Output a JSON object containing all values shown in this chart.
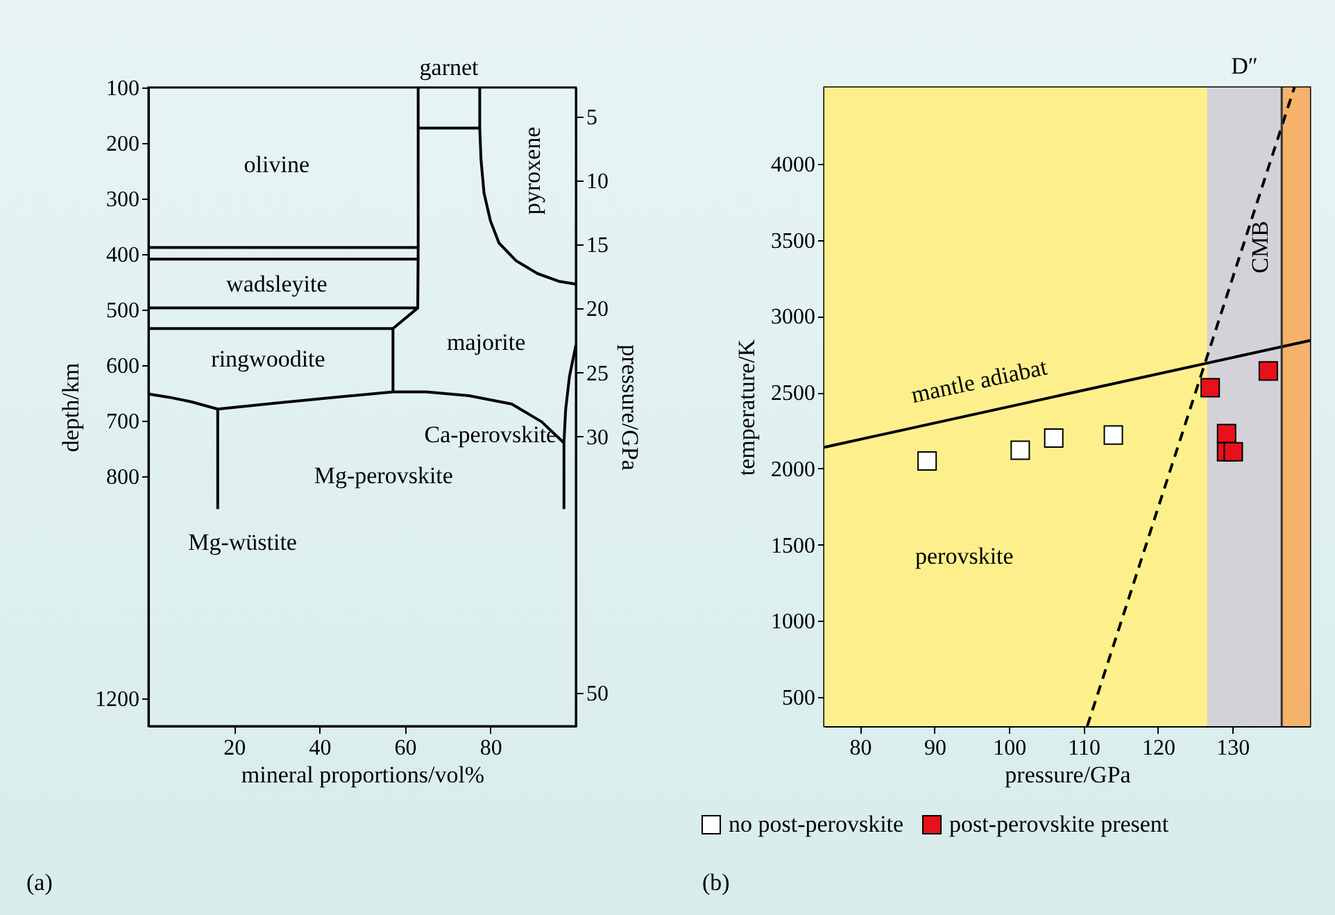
{
  "chart_data": [
    {
      "type": "line",
      "xlabel": "mineral proportions/vol%",
      "ylabel": "depth/km",
      "y2label": "pressure/GPa",
      "xlim": [
        0,
        100
      ],
      "xticks": [
        20,
        40,
        60,
        80
      ],
      "ylim": [
        1250,
        100
      ],
      "yticks": [
        100,
        200,
        300,
        400,
        500,
        600,
        700,
        800,
        1200
      ],
      "y2lim": [
        52.6,
        2.75
      ],
      "y2ticks": [
        5,
        10,
        15,
        20,
        25,
        30,
        50
      ],
      "grid": false,
      "series": [
        {
          "color": "#000000",
          "x": [
            0,
            63.1
          ],
          "values": [
            388,
            388
          ]
        },
        {
          "color": "#000000",
          "x": [
            0,
            63.1
          ],
          "values": [
            409,
            409
          ]
        },
        {
          "color": "#000000",
          "x": [
            0,
            63.1
          ],
          "values": [
            497,
            497
          ]
        },
        {
          "color": "#000000",
          "x": [
            0,
            57.2
          ],
          "values": [
            534,
            534
          ]
        },
        {
          "color": "#000000",
          "x": [
            63.1,
            63.1,
            63,
            57.2,
            57.2
          ],
          "values": [
            100,
            388,
            497,
            534,
            648
          ]
        },
        {
          "color": "#000000",
          "x": [
            77.5,
            77.5,
            63.1
          ],
          "values": [
            100,
            173,
            173
          ]
        },
        {
          "color": "#000000",
          "x": [
            77.5,
            77.8,
            78.5,
            80,
            82,
            86,
            91,
            96,
            100
          ],
          "values": [
            173,
            230,
            290,
            340,
            380,
            412,
            435,
            449,
            454
          ]
        },
        {
          "color": "#000000",
          "x": [
            0,
            5,
            10,
            16.2,
            30,
            45,
            57.2,
            65,
            75,
            85,
            92,
            97.2
          ],
          "values": [
            652,
            658,
            666,
            679,
            668,
            657,
            648,
            648,
            655,
            670,
            702,
            740
          ]
        },
        {
          "color": "#000000",
          "x": [
            16.2,
            16.2
          ],
          "values": [
            679,
            859
          ]
        },
        {
          "color": "#000000",
          "x": [
            100,
            98.5,
            97.6,
            97.2,
            97.2
          ],
          "values": [
            564,
            620,
            680,
            740,
            859
          ]
        }
      ],
      "annotations": [
        "olivine",
        "wadsleyite",
        "ringwoodite",
        "majorite",
        "pyroxene",
        "garnet",
        "Ca-perovskite",
        "Mg-perovskite",
        "Mg-wüstite",
        "(a)"
      ]
    },
    {
      "type": "scatter",
      "xlabel": "pressure/GPa",
      "ylabel": "temperature/K",
      "xlim": [
        75.2,
        140.4
      ],
      "xticks": [
        80,
        90,
        100,
        110,
        120,
        130
      ],
      "ylim": [
        310,
        4500
      ],
      "yticks": [
        500,
        1000,
        1500,
        2000,
        2500,
        3000,
        3500,
        4000
      ],
      "grid": false,
      "legend": "bottom",
      "bands": [
        {
          "axis": "x",
          "from": 75.2,
          "to": 126.6,
          "color": "#fdf08c"
        },
        {
          "axis": "x",
          "from": 126.6,
          "to": 136.6,
          "color": "#d2d2d8",
          "label": "D″"
        },
        {
          "axis": "x",
          "from": 136.6,
          "to": 140.4,
          "color": "#f5b26b"
        }
      ],
      "ref_lines": [
        {
          "axis": "x",
          "value": 136.6,
          "label": "CMB",
          "color": "#333333"
        }
      ],
      "series": [
        {
          "type": "line",
          "color": "#000000",
          "line_style": "solid",
          "x": [
            75.2,
            140.4
          ],
          "values": [
            2140,
            2840
          ]
        },
        {
          "type": "line",
          "color": "#000000",
          "line_style": "dashed",
          "x": [
            110.5,
            138.3
          ],
          "values": [
            310,
            4500
          ]
        },
        {
          "name": "no post-perovskite",
          "color": "#ffffff",
          "marker": "square",
          "x": [
            89,
            101.5,
            106,
            114
          ],
          "values": [
            2050,
            2120,
            2200,
            2220
          ]
        },
        {
          "name": "post-perovskite present",
          "color": "#e8101a",
          "marker": "square",
          "x": [
            127,
            129.2,
            129.2,
            130.1,
            134.8
          ],
          "values": [
            2530,
            2230,
            2110,
            2110,
            2640
          ]
        }
      ],
      "annotations": [
        "mantle adiabat",
        "perovskite",
        "(b)"
      ]
    }
  ]
}
